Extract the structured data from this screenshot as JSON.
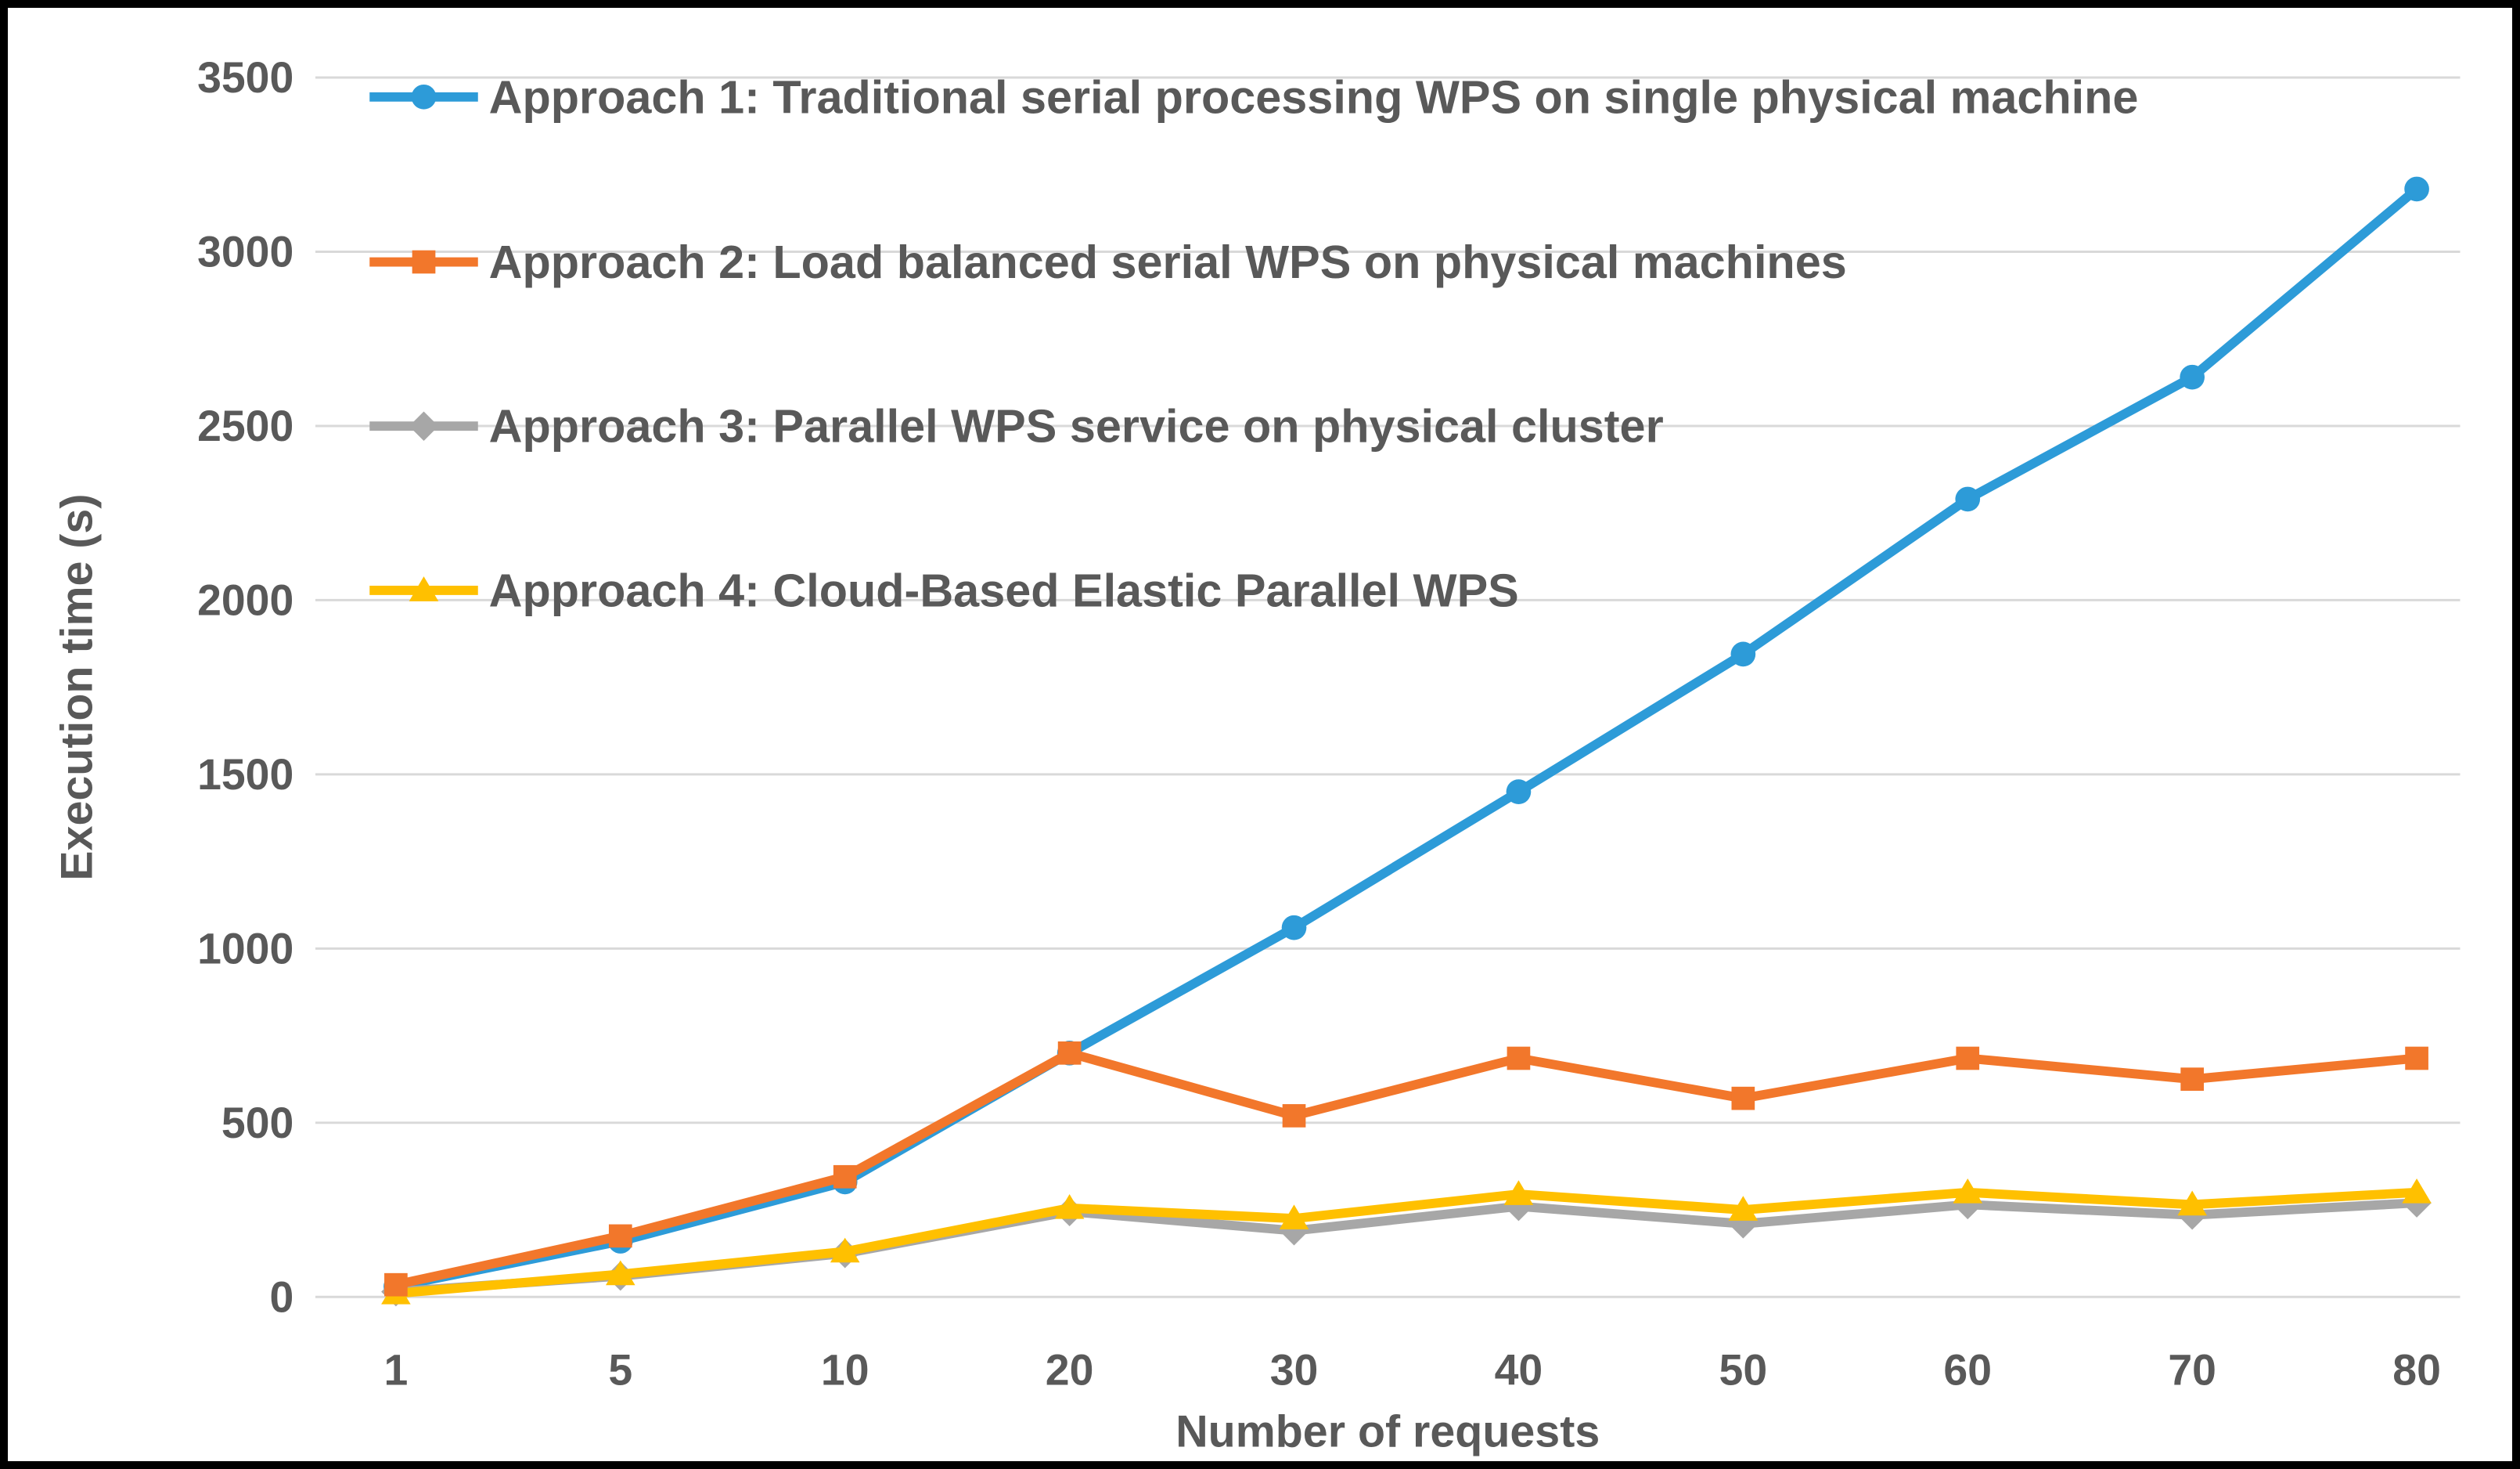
{
  "chart_data": {
    "type": "line",
    "title": "",
    "xlabel": "Number of requests",
    "ylabel": "Execution time (s)",
    "categories": [
      "1",
      "5",
      "10",
      "20",
      "30",
      "40",
      "50",
      "60",
      "70",
      "80"
    ],
    "y_ticks": [
      0,
      500,
      1000,
      1500,
      2000,
      2500,
      3000,
      3500
    ],
    "ylim": [
      0,
      3500
    ],
    "grid": "horizontal",
    "legend_position": "top-left-inside",
    "series": [
      {
        "name": "Approach 1: Traditional serial processing WPS on single physical machine",
        "color": "#2D9BD8",
        "marker": "circle",
        "values": [
          30,
          160,
          330,
          700,
          1060,
          1450,
          1845,
          2290,
          2640,
          3180
        ]
      },
      {
        "name": "Approach 2: Load balanced serial WPS on physical machines",
        "color": "#F2772B",
        "marker": "square",
        "values": [
          35,
          175,
          345,
          700,
          520,
          685,
          570,
          685,
          625,
          685
        ]
      },
      {
        "name": "Approach 3: Parallel WPS service on physical cluster",
        "color": "#A7A7A7",
        "marker": "diamond",
        "values": [
          15,
          60,
          125,
          245,
          190,
          260,
          210,
          265,
          235,
          270
        ]
      },
      {
        "name": "Approach 4: Cloud-Based Elastic Parallel WPS",
        "color": "#FFC000",
        "marker": "triangle",
        "values": [
          10,
          65,
          130,
          255,
          225,
          295,
          250,
          300,
          265,
          300
        ]
      }
    ],
    "colors": {
      "grid": "#D9D9D9",
      "text": "#595959",
      "background": "#FFFFFF",
      "border": "#000000"
    }
  }
}
